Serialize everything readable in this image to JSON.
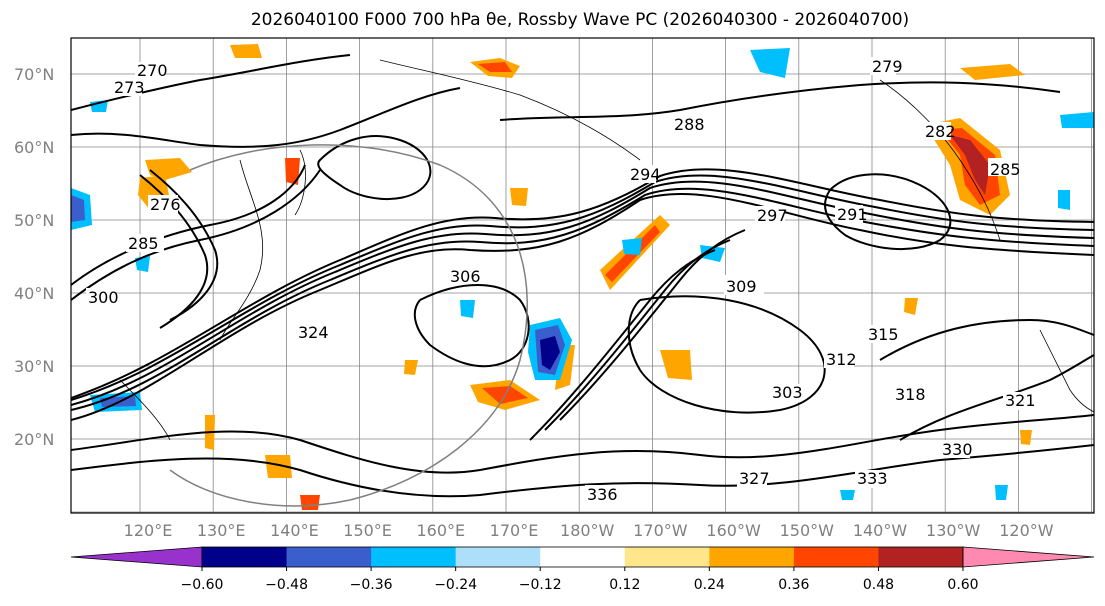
{
  "title": "2026040100 F000 700 hPa θe, Rossby Wave PC (2026040300 - 2026040700)",
  "map": {
    "lat_labels": [
      "70°N",
      "60°N",
      "50°N",
      "40°N",
      "30°N",
      "20°N"
    ],
    "lon_labels": [
      "120°E",
      "130°E",
      "140°E",
      "150°E",
      "160°E",
      "170°E",
      "180°W",
      "170°W",
      "160°W",
      "150°W",
      "140°W",
      "130°W",
      "120°W"
    ],
    "contour_labels": [
      "270",
      "273",
      "276",
      "279",
      "282",
      "285",
      "288",
      "291",
      "294",
      "297",
      "300",
      "303",
      "306",
      "309",
      "312",
      "315",
      "318",
      "321",
      "324",
      "327",
      "330",
      "333",
      "336"
    ],
    "shown_contour_labels": [
      "279",
      "288",
      "282",
      "285",
      "291",
      "294",
      "297",
      "306",
      "309",
      "315",
      "312",
      "318",
      "321",
      "327",
      "330",
      "333",
      "276",
      "285",
      "300",
      "303",
      "324",
      "336",
      "273",
      "270"
    ]
  },
  "colorbar": {
    "tick_labels": [
      "−0.60",
      "−0.48",
      "−0.36",
      "−0.24",
      "−0.12",
      "0.12",
      "0.24",
      "0.36",
      "0.48",
      "0.60"
    ],
    "colors": [
      "#9932CC",
      "#00008B",
      "#3A5FCD",
      "#00BFFF",
      "#ADDFFA",
      "#FFFFFF",
      "#FFE68A",
      "#FFA500",
      "#FF4500",
      "#B22222",
      "#FF89B0"
    ],
    "extend": "both"
  }
}
